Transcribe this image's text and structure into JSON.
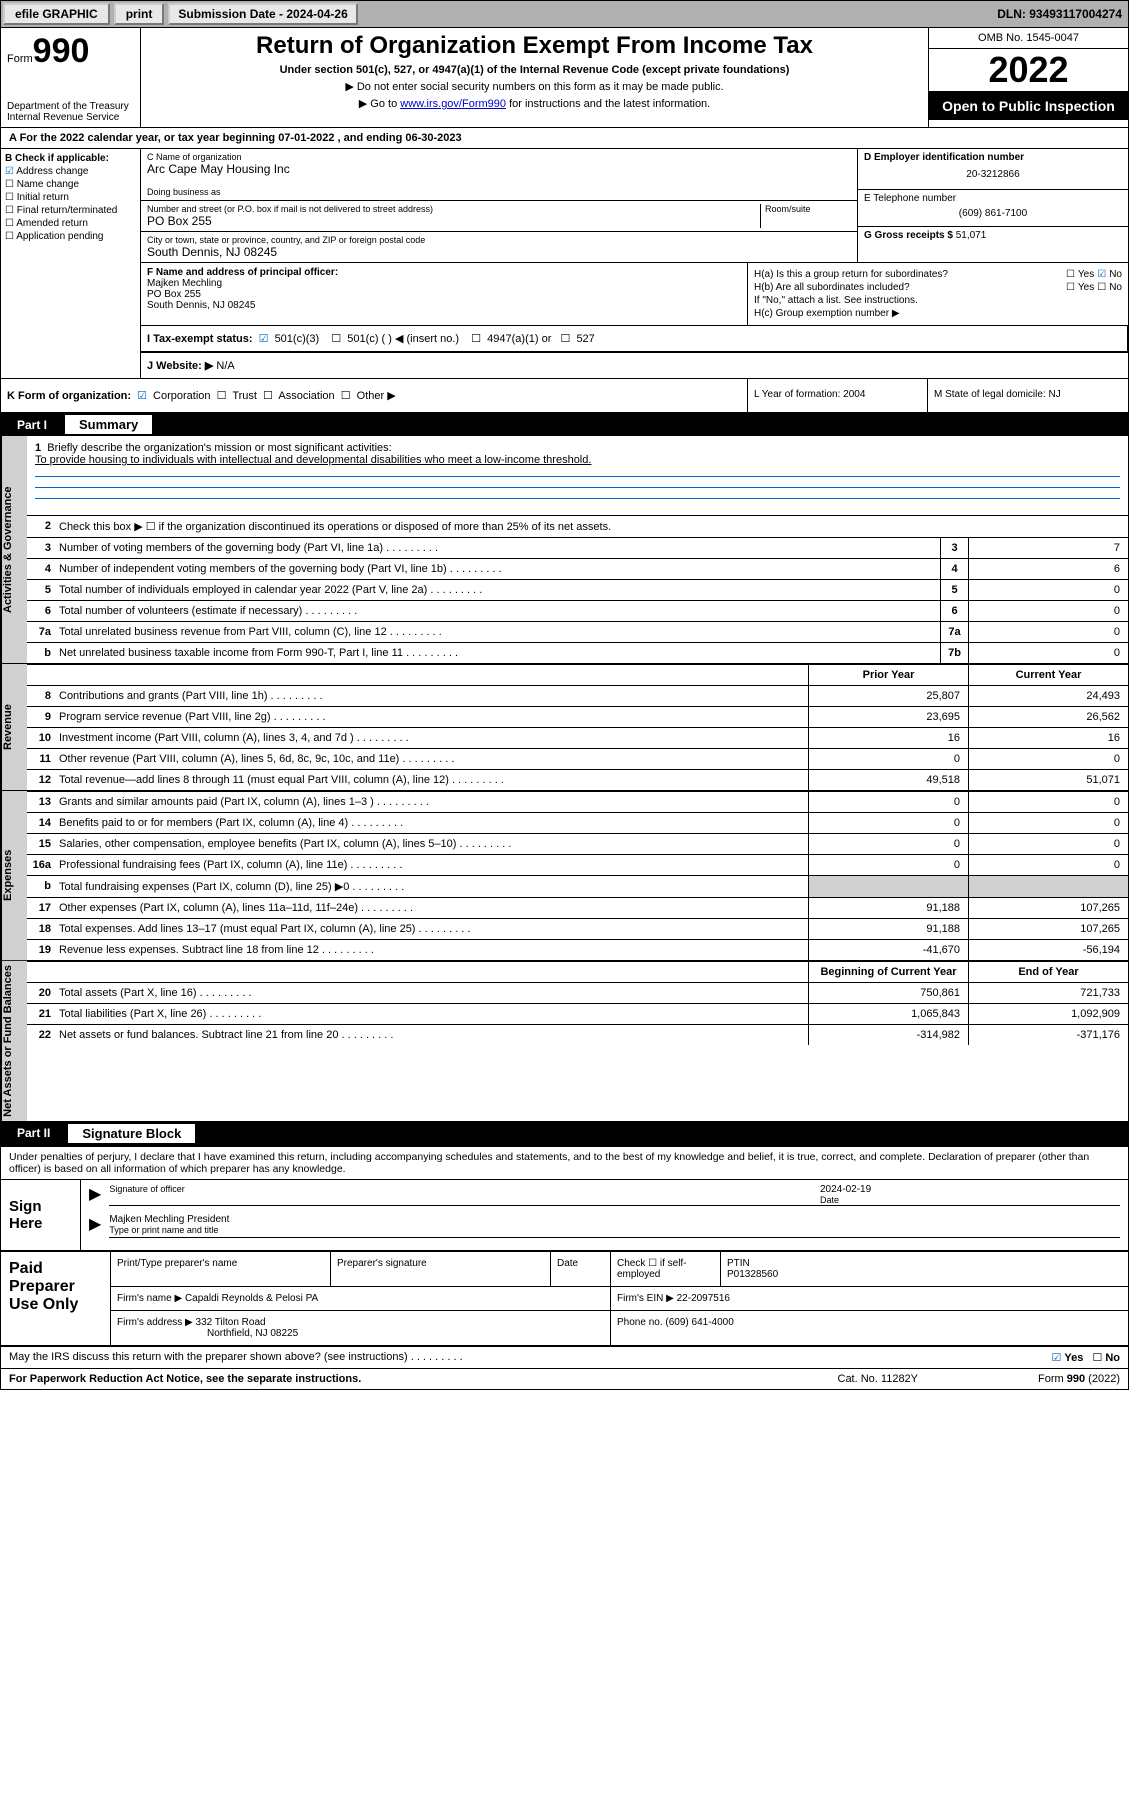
{
  "topbar": {
    "efile": "efile GRAPHIC",
    "print": "print",
    "subdate_label": "Submission Date - 2024-04-26",
    "dln": "DLN: 93493117004274"
  },
  "header": {
    "form_word": "Form",
    "form_num": "990",
    "dept": "Department of the Treasury",
    "dept2": "Internal Revenue Service",
    "title": "Return of Organization Exempt From Income Tax",
    "subtitle": "Under section 501(c), 527, or 4947(a)(1) of the Internal Revenue Code (except private foundations)",
    "note1": "▶ Do not enter social security numbers on this form as it may be made public.",
    "note2": "▶ Go to ",
    "link": "www.irs.gov/Form990",
    "note2b": " for instructions and the latest information.",
    "omb": "OMB No. 1545-0047",
    "year": "2022",
    "opi": "Open to Public Inspection"
  },
  "rowA": "A For the 2022 calendar year, or tax year beginning 07-01-2022   , and ending 06-30-2023",
  "colB": {
    "label": "B Check if applicable:",
    "addr": "Address change",
    "name": "Name change",
    "init": "Initial return",
    "final": "Final return/terminated",
    "amend": "Amended return",
    "app": "Application pending"
  },
  "colC": {
    "name_label": "C Name of organization",
    "name": "Arc Cape May Housing Inc",
    "dba_label": "Doing business as",
    "dba": "",
    "addr_label": "Number and street (or P.O. box if mail is not delivered to street address)",
    "room_label": "Room/suite",
    "addr": "PO Box 255",
    "city_label": "City or town, state or province, country, and ZIP or foreign postal code",
    "city": "South Dennis, NJ  08245"
  },
  "colD": {
    "ein_label": "D Employer identification number",
    "ein": "20-3212866",
    "tel_label": "E Telephone number",
    "tel": "(609) 861-7100",
    "gross_label": "G Gross receipts $",
    "gross": "51,071"
  },
  "colF": {
    "label": "F Name and address of principal officer:",
    "name": "Majken Mechling",
    "addr1": "PO Box 255",
    "addr2": "South Dennis, NJ  08245"
  },
  "colH": {
    "ha": "H(a)  Is this a group return for subordinates?",
    "hb": "H(b)  Are all subordinates included?",
    "hb_note": "If \"No,\" attach a list. See instructions.",
    "hc": "H(c)  Group exemption number ▶",
    "yes": "Yes",
    "no": "No"
  },
  "rowI": {
    "label": "I     Tax-exempt status:",
    "o1": "501(c)(3)",
    "o2": "501(c) (  ) ◀ (insert no.)",
    "o3": "4947(a)(1) or",
    "o4": "527"
  },
  "rowJ": {
    "label": "J    Website: ▶",
    "val": "N/A"
  },
  "rowK": {
    "label": "K Form of organization:",
    "corp": "Corporation",
    "trust": "Trust",
    "assoc": "Association",
    "other": "Other ▶",
    "L": "L Year of formation: 2004",
    "M": "M State of legal domicile: NJ"
  },
  "part1": {
    "num": "Part I",
    "title": "Summary"
  },
  "tabs": {
    "ag": "Activities & Governance",
    "rev": "Revenue",
    "exp": "Expenses",
    "nab": "Net Assets or Fund Balances"
  },
  "mission": {
    "n": "1",
    "label": "Briefly describe the organization's mission or most significant activities:",
    "text": "To provide housing to individuals with intellectual and developmental disabilities who meet a low-income threshold."
  },
  "lines_ag": [
    {
      "n": "2",
      "t": "Check this box ▶ ☐  if the organization discontinued its operations or disposed of more than 25% of its net assets.",
      "bx": "",
      "v": ""
    },
    {
      "n": "3",
      "t": "Number of voting members of the governing body (Part VI, line 1a)",
      "bx": "3",
      "v": "7"
    },
    {
      "n": "4",
      "t": "Number of independent voting members of the governing body (Part VI, line 1b)",
      "bx": "4",
      "v": "6"
    },
    {
      "n": "5",
      "t": "Total number of individuals employed in calendar year 2022 (Part V, line 2a)",
      "bx": "5",
      "v": "0"
    },
    {
      "n": "6",
      "t": "Total number of volunteers (estimate if necessary)",
      "bx": "6",
      "v": "0"
    },
    {
      "n": "7a",
      "t": "Total unrelated business revenue from Part VIII, column (C), line 12",
      "bx": "7a",
      "v": "0"
    },
    {
      "n": "b",
      "t": "Net unrelated business taxable income from Form 990-T, Part I, line 11",
      "bx": "7b",
      "v": "0"
    }
  ],
  "hdr_rev": {
    "py": "Prior Year",
    "cy": "Current Year"
  },
  "lines_rev": [
    {
      "n": "8",
      "t": "Contributions and grants (Part VIII, line 1h)",
      "py": "25,807",
      "cy": "24,493"
    },
    {
      "n": "9",
      "t": "Program service revenue (Part VIII, line 2g)",
      "py": "23,695",
      "cy": "26,562"
    },
    {
      "n": "10",
      "t": "Investment income (Part VIII, column (A), lines 3, 4, and 7d )",
      "py": "16",
      "cy": "16"
    },
    {
      "n": "11",
      "t": "Other revenue (Part VIII, column (A), lines 5, 6d, 8c, 9c, 10c, and 11e)",
      "py": "0",
      "cy": "0"
    },
    {
      "n": "12",
      "t": "Total revenue—add lines 8 through 11 (must equal Part VIII, column (A), line 12)",
      "py": "49,518",
      "cy": "51,071"
    }
  ],
  "lines_exp": [
    {
      "n": "13",
      "t": "Grants and similar amounts paid (Part IX, column (A), lines 1–3 )",
      "py": "0",
      "cy": "0"
    },
    {
      "n": "14",
      "t": "Benefits paid to or for members (Part IX, column (A), line 4)",
      "py": "0",
      "cy": "0"
    },
    {
      "n": "15",
      "t": "Salaries, other compensation, employee benefits (Part IX, column (A), lines 5–10)",
      "py": "0",
      "cy": "0"
    },
    {
      "n": "16a",
      "t": "Professional fundraising fees (Part IX, column (A), line 11e)",
      "py": "0",
      "cy": "0"
    },
    {
      "n": "b",
      "t": "Total fundraising expenses (Part IX, column (D), line 25) ▶0",
      "py": "",
      "cy": "",
      "shade": true
    },
    {
      "n": "17",
      "t": "Other expenses (Part IX, column (A), lines 11a–11d, 11f–24e)",
      "py": "91,188",
      "cy": "107,265"
    },
    {
      "n": "18",
      "t": "Total expenses. Add lines 13–17 (must equal Part IX, column (A), line 25)",
      "py": "91,188",
      "cy": "107,265"
    },
    {
      "n": "19",
      "t": "Revenue less expenses. Subtract line 18 from line 12",
      "py": "-41,670",
      "cy": "-56,194"
    }
  ],
  "hdr_nab": {
    "py": "Beginning of Current Year",
    "cy": "End of Year"
  },
  "lines_nab": [
    {
      "n": "20",
      "t": "Total assets (Part X, line 16)",
      "py": "750,861",
      "cy": "721,733"
    },
    {
      "n": "21",
      "t": "Total liabilities (Part X, line 26)",
      "py": "1,065,843",
      "cy": "1,092,909"
    },
    {
      "n": "22",
      "t": "Net assets or fund balances. Subtract line 21 from line 20",
      "py": "-314,982",
      "cy": "-371,176"
    }
  ],
  "part2": {
    "num": "Part II",
    "title": "Signature Block"
  },
  "sig": {
    "decl": "Under penalties of perjury, I declare that I have examined this return, including accompanying schedules and statements, and to the best of my knowledge and belief, it is true, correct, and complete. Declaration of preparer (other than officer) is based on all information of which preparer has any knowledge.",
    "sign_here": "Sign Here",
    "sig_label": "Signature of officer",
    "date_label": "Date",
    "date": "2024-02-19",
    "name_title": "Majken Mechling President",
    "name_label": "Type or print name and title"
  },
  "ppu": {
    "title": "Paid Preparer Use Only",
    "h1": "Print/Type preparer's name",
    "h2": "Preparer's signature",
    "h3": "Date",
    "h4a": "Check ☐ if self-employed",
    "h4b": "PTIN",
    "ptin": "P01328560",
    "firm_name_label": "Firm's name     ▶",
    "firm_name": "Capaldi Reynolds & Pelosi PA",
    "firm_ein_label": "Firm's EIN ▶",
    "firm_ein": "22-2097516",
    "firm_addr_label": "Firm's address ▶",
    "firm_addr1": "332 Tilton Road",
    "firm_addr2": "Northfield, NJ  08225",
    "phone_label": "Phone no.",
    "phone": "(609) 641-4000"
  },
  "footer": {
    "discuss": "May the IRS discuss this return with the preparer shown above? (see instructions)",
    "yes": "Yes",
    "no": "No",
    "paperwork": "For Paperwork Reduction Act Notice, see the separate instructions.",
    "cat": "Cat. No. 11282Y",
    "form": "Form 990 (2022)"
  },
  "colors": {
    "link": "#0000cc",
    "check": "#0066cc",
    "shade": "#d0d0d0",
    "topbar": "#b0b0b0"
  }
}
